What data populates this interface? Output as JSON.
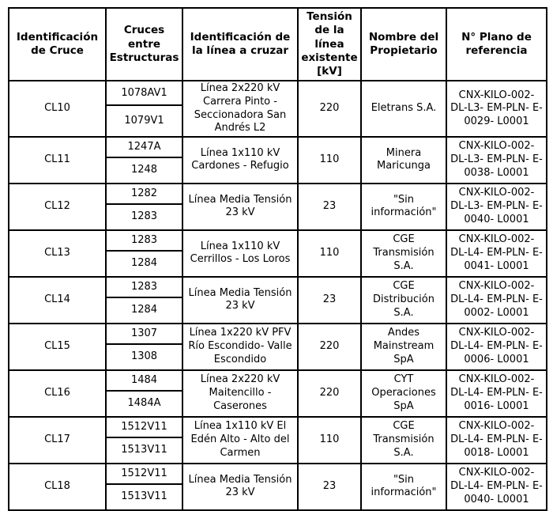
{
  "table": {
    "headers": [
      "Identificación de Cruce",
      "Cruces entre Estructuras",
      "Identificación de la línea a cruzar",
      "Tensión de la línea existente [kV]",
      "Nombre del Propietario",
      "N° Plano de referencia"
    ],
    "rows": [
      {
        "id": "CL10",
        "structures": [
          "1078AV1",
          "1079V1"
        ],
        "line": "Línea 2x220 kV Carrera Pinto - Seccionadora San Andrés L2",
        "voltage": "220",
        "owner": "Eletrans S.A.",
        "plan": "CNX-KILO-002- DL-L3- EM-PLN- E-0029- L0001"
      },
      {
        "id": "CL11",
        "structures": [
          "1247A",
          "1248"
        ],
        "line": "Línea 1x110 kV Cardones - Refugio",
        "voltage": "110",
        "owner": "Minera Maricunga",
        "plan": "CNX-KILO-002- DL-L3- EM-PLN- E-0038- L0001"
      },
      {
        "id": "CL12",
        "structures": [
          "1282",
          "1283"
        ],
        "line": "Línea Media Tensión 23 kV",
        "voltage": "23",
        "owner": "\"Sin información\"",
        "plan": "CNX-KILO-002- DL-L3- EM-PLN- E-0040- L0001"
      },
      {
        "id": "CL13",
        "structures": [
          "1283",
          "1284"
        ],
        "line": "Línea 1x110 kV Cerrillos - Los Loros",
        "voltage": "110",
        "owner": "CGE Transmisión S.A.",
        "plan": "CNX-KILO-002- DL-L4- EM-PLN- E-0041- L0001"
      },
      {
        "id": "CL14",
        "structures": [
          "1283",
          "1284"
        ],
        "line": "Línea Media Tensión 23 kV",
        "voltage": "23",
        "owner": "CGE Distribución S.A.",
        "plan": "CNX-KILO-002- DL-L4- EM-PLN- E-0002- L0001"
      },
      {
        "id": "CL15",
        "structures": [
          "1307",
          "1308"
        ],
        "line": "Línea 1x220 kV PFV Río Escondido- Valle Escondido",
        "voltage": "220",
        "owner": "Andes Mainstream SpA",
        "plan": "CNX-KILO-002- DL-L4- EM-PLN- E-0006- L0001"
      },
      {
        "id": "CL16",
        "structures": [
          "1484",
          "1484A"
        ],
        "line": "Línea 2x220 kV Maitencillo - Caserones",
        "voltage": "220",
        "owner": "CYT Operaciones SpA",
        "plan": "CNX-KILO-002- DL-L4- EM-PLN- E-0016- L0001"
      },
      {
        "id": "CL17",
        "structures": [
          "1512V11",
          "1513V11"
        ],
        "line": "Línea 1x110 kV El Edén Alto - Alto del Carmen",
        "voltage": "110",
        "owner": "CGE Transmisión S.A.",
        "plan": "CNX-KILO-002- DL-L4- EM-PLN- E-0018- L0001"
      },
      {
        "id": "CL18",
        "structures": [
          "1512V11",
          "1513V11"
        ],
        "line": "Línea Media Tensión 23 kV",
        "voltage": "23",
        "owner": "\"Sin información\"",
        "plan": "CNX-KILO-002- DL-L4- EM-PLN- E-0040- L0001"
      }
    ]
  }
}
